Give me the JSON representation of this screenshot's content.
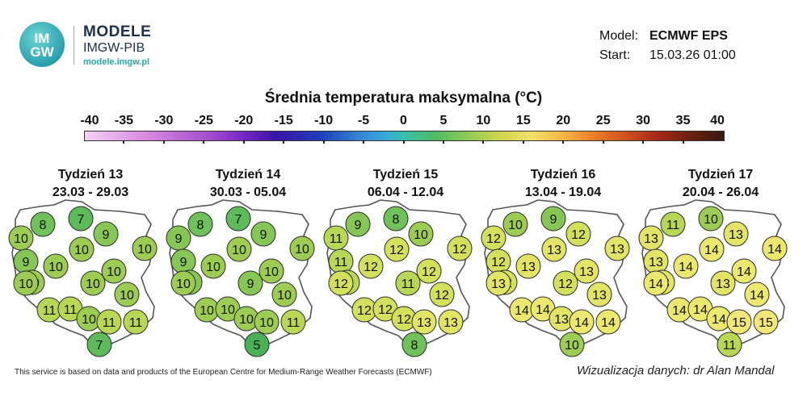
{
  "header": {
    "logo_line1": "IM",
    "logo_line2": "GW",
    "brand_title": "MODELE",
    "brand_subtitle": "IMGW-PIB",
    "brand_url": "modele.imgw.pl",
    "model_label": "Model:",
    "model_value": "ECMWF EPS",
    "start_label": "Start:",
    "start_value": "15.03.26 01:00"
  },
  "legend": {
    "title": "Średnia temperatura maksymalna (°C)",
    "ticks": [
      "-40",
      "-35",
      "-30",
      "-25",
      "-20",
      "-15",
      "-10",
      "-5",
      "0",
      "5",
      "10",
      "15",
      "20",
      "25",
      "30",
      "35",
      "40"
    ]
  },
  "colors": {
    "t5": "#49b257",
    "t7": "#5dbb5a",
    "t8": "#6fc15a",
    "t9": "#86c655",
    "t10": "#9ccd52",
    "t11": "#b7d755",
    "t12": "#d2e05c",
    "t13": "#e1e464",
    "t14": "#ece86e",
    "t15": "#f0e777",
    "map_fill": "#ffffff",
    "border": "#555555"
  },
  "maps": [
    {
      "week": "Tydzień 13",
      "dates": "23.03 - 29.03",
      "values": [
        8,
        7,
        9,
        10,
        10,
        9,
        10,
        10,
        10,
        10,
        10,
        10,
        10,
        11,
        11,
        10,
        11,
        11,
        7
      ]
    },
    {
      "week": "Tydzień 14",
      "dates": "30.03 - 05.04",
      "values": [
        8,
        7,
        9,
        9,
        10,
        9,
        10,
        10,
        10,
        9,
        9,
        10,
        10,
        10,
        10,
        10,
        10,
        11,
        5
      ]
    },
    {
      "week": "Tydzień 15",
      "dates": "06.04 - 12.04",
      "values": [
        9,
        8,
        10,
        11,
        12,
        11,
        12,
        12,
        12,
        11,
        11,
        12,
        12,
        12,
        12,
        12,
        13,
        13,
        8
      ]
    },
    {
      "week": "Tydzień 16",
      "dates": "13.04 - 19.04",
      "values": [
        10,
        9,
        12,
        12,
        13,
        12,
        13,
        13,
        13,
        12,
        12,
        13,
        13,
        14,
        14,
        13,
        14,
        14,
        10
      ]
    },
    {
      "week": "Tydzień 17",
      "dates": "20.04 - 26.04",
      "values": [
        11,
        10,
        13,
        13,
        14,
        13,
        14,
        14,
        14,
        13,
        13,
        14,
        14,
        14,
        14,
        14,
        15,
        15,
        11
      ]
    }
  ],
  "footer": {
    "source": "This service is based on data and products of the European Centre for Medium-Range Weather Forecasts (ECMWF)",
    "credit": "Wizualizacja danych: dr Alan Mandal"
  }
}
